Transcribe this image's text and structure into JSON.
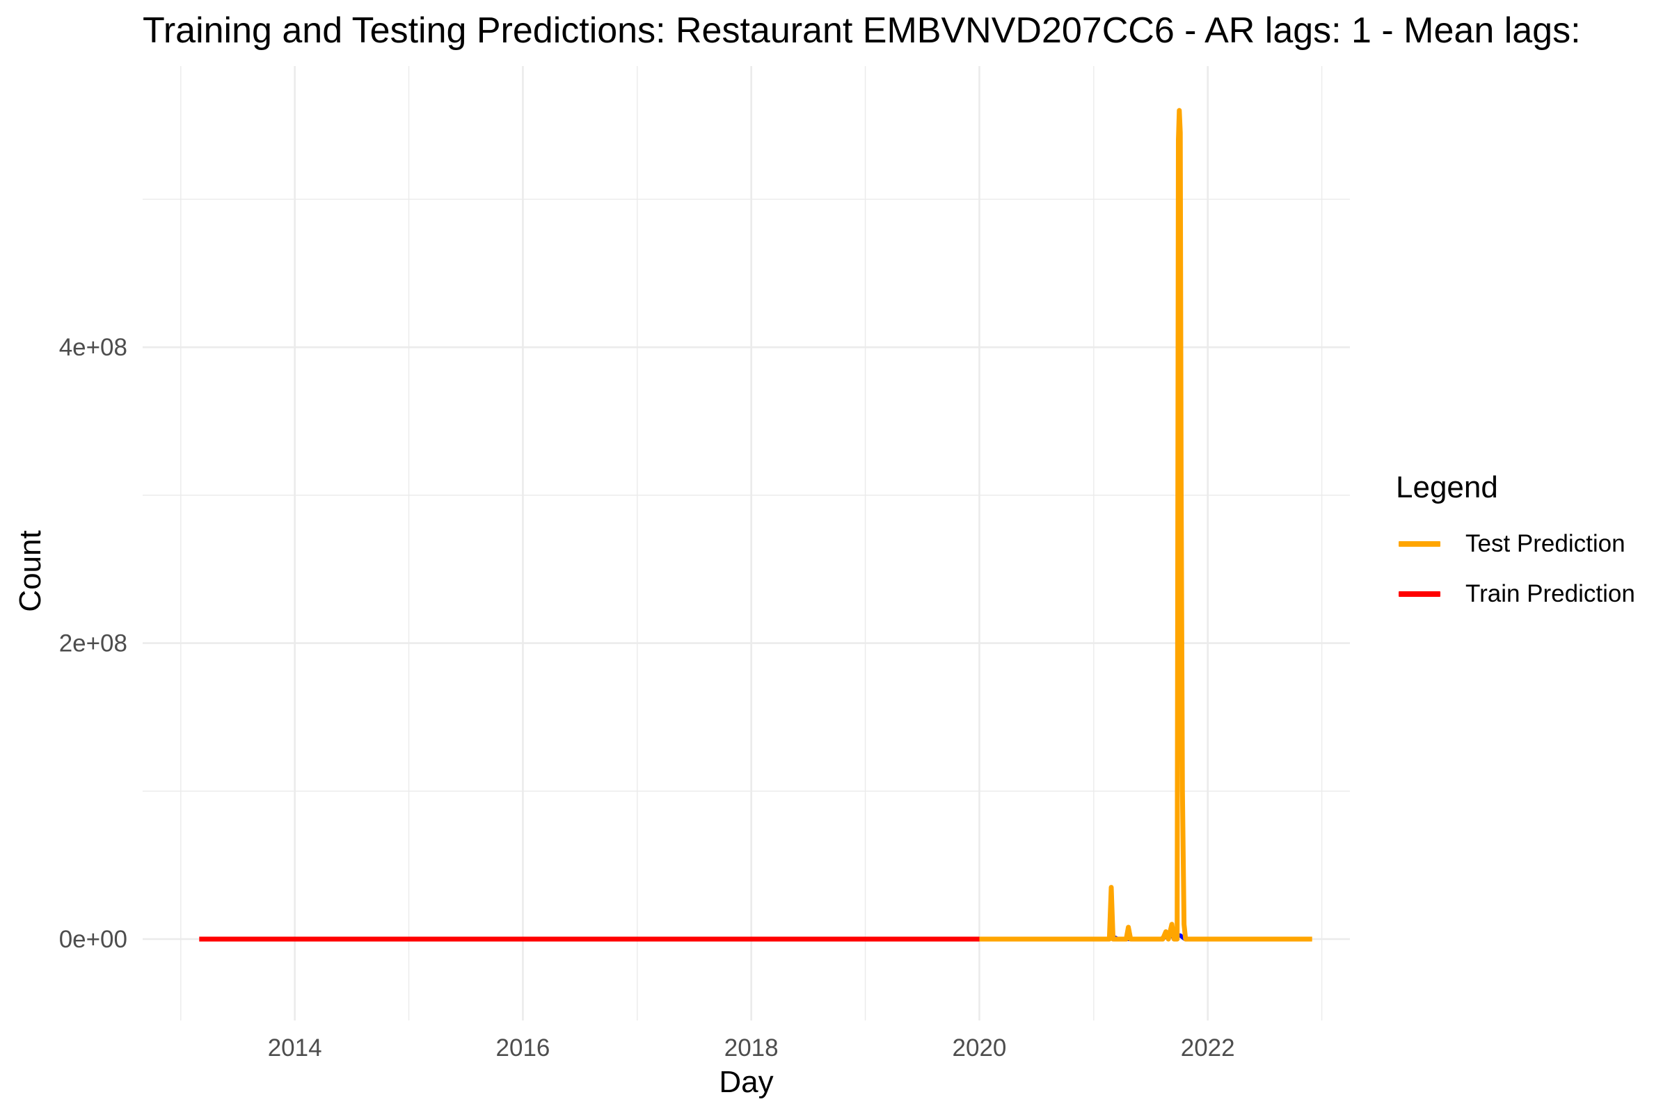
{
  "chart_data": {
    "type": "line",
    "title": "Training and Testing Predictions: Restaurant EMBVNVD207CC6 - AR lags: 1 - Mean lags:",
    "xlabel": "Day",
    "ylabel": "Count",
    "x_ticks": [
      "2014",
      "2016",
      "2018",
      "2020",
      "2022"
    ],
    "y_ticks": [
      "0e+00",
      "2e+08",
      "4e+08"
    ],
    "xlim": [
      "2012-09-01",
      "2023-04-01"
    ],
    "ylim": [
      -55000000,
      590000000
    ],
    "grid": true,
    "legend": {
      "title": "Legend",
      "position": "right",
      "entries": [
        {
          "label": "Test Prediction",
          "color": "#FFA500"
        },
        {
          "label": "Train Prediction",
          "color": "#FF0000"
        }
      ]
    },
    "series": [
      {
        "name": "Train Prediction",
        "color": "#FF0000",
        "points": [
          [
            "2013-03-01",
            0
          ],
          [
            "2020-01-01",
            0
          ]
        ]
      },
      {
        "name": "Test Prediction",
        "color": "#FFA500",
        "points": [
          [
            "2020-01-01",
            0
          ],
          [
            "2021-02-20",
            0
          ],
          [
            "2021-02-26",
            35000000
          ],
          [
            "2021-03-04",
            0
          ],
          [
            "2021-04-15",
            0
          ],
          [
            "2021-04-22",
            8000000
          ],
          [
            "2021-04-29",
            0
          ],
          [
            "2021-08-10",
            0
          ],
          [
            "2021-08-20",
            5000000
          ],
          [
            "2021-08-28",
            0
          ],
          [
            "2021-09-08",
            10000000
          ],
          [
            "2021-09-15",
            0
          ],
          [
            "2021-09-25",
            0
          ],
          [
            "2021-09-29",
            540000000
          ],
          [
            "2021-10-02",
            560000000
          ],
          [
            "2021-10-05",
            545000000
          ],
          [
            "2021-10-08",
            300000000
          ],
          [
            "2021-10-12",
            100000000
          ],
          [
            "2021-10-17",
            10000000
          ],
          [
            "2021-10-22",
            0
          ],
          [
            "2022-12-01",
            0
          ]
        ]
      },
      {
        "name": "",
        "color": "#0000FF",
        "points": [
          [
            "2021-02-26",
            0
          ],
          [
            "2021-03-10",
            1000000
          ],
          [
            "2021-03-20",
            0
          ],
          [
            "2021-08-01",
            0
          ],
          [
            "2021-08-20",
            1500000
          ],
          [
            "2021-09-10",
            2000000
          ],
          [
            "2021-10-05",
            2500000
          ],
          [
            "2021-10-20",
            0
          ]
        ]
      }
    ]
  }
}
